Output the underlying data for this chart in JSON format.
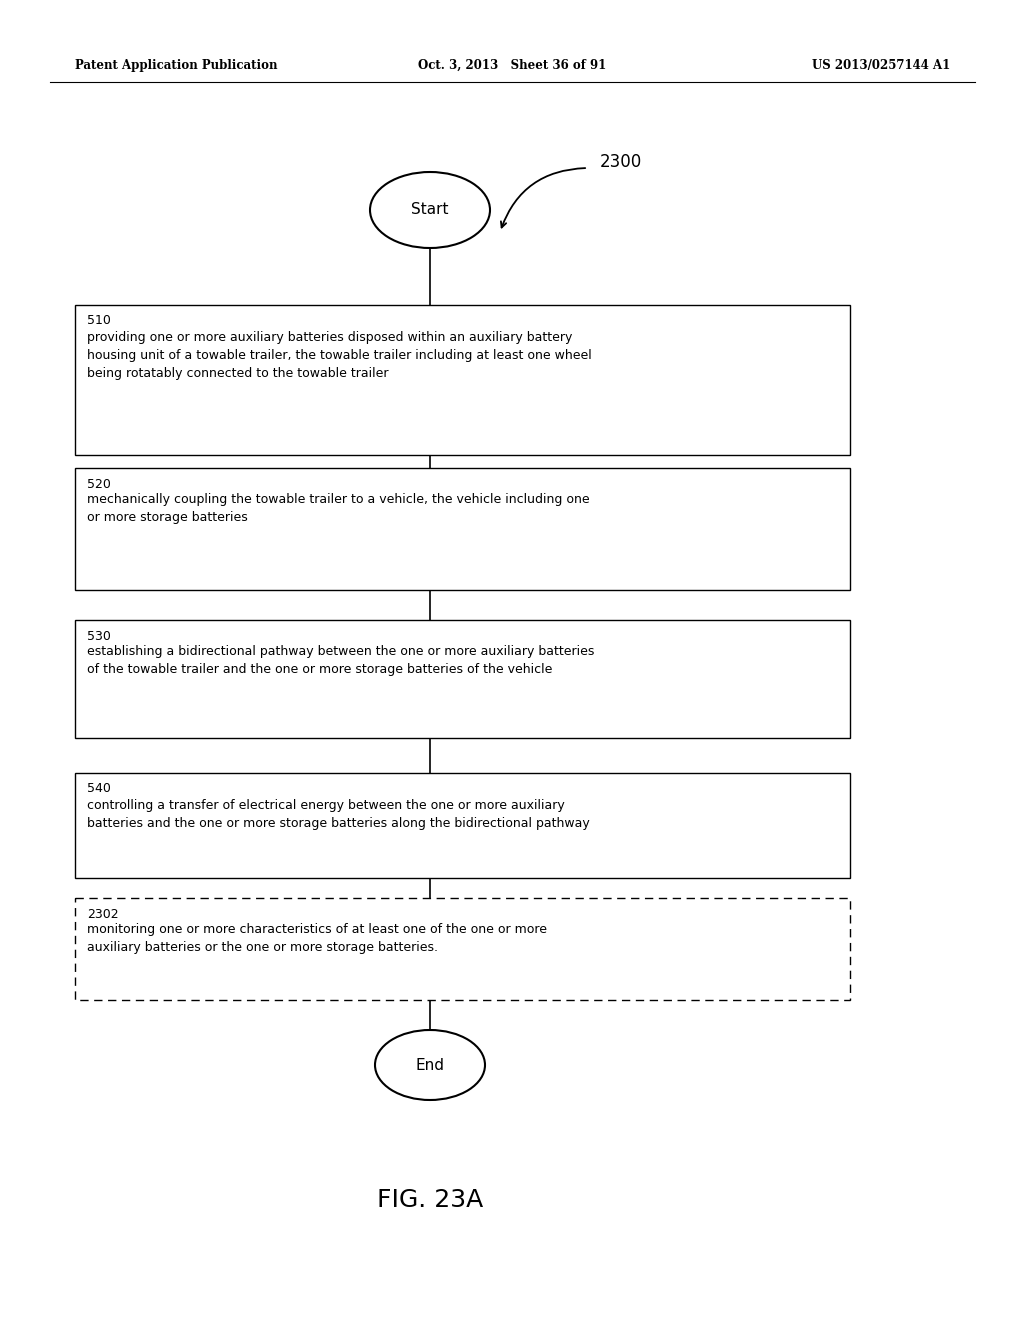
{
  "bg_color": "#ffffff",
  "header_left": "Patent Application Publication",
  "header_mid": "Oct. 3, 2013   Sheet 36 of 91",
  "header_right": "US 2013/0257144 A1",
  "figure_label": "FIG. 23A",
  "flowchart_label": "2300",
  "start_label": "Start",
  "end_label": "End",
  "boxes": [
    {
      "id": "510",
      "label": "510",
      "text": "providing one or more auxiliary batteries disposed within an auxiliary battery\nhousing unit of a towable trailer, the towable trailer including at least one wheel\nbeing rotatably connected to the towable trailer",
      "dashed": false
    },
    {
      "id": "520",
      "label": "520",
      "text": "mechanically coupling the towable trailer to a vehicle, the vehicle including one\nor more storage batteries",
      "dashed": false
    },
    {
      "id": "530",
      "label": "530",
      "text": "establishing a bidirectional pathway between the one or more auxiliary batteries\nof the towable trailer and the one or more storage batteries of the vehicle",
      "dashed": false
    },
    {
      "id": "540",
      "label": "540",
      "text": "controlling a transfer of electrical energy between the one or more auxiliary\nbatteries and the one or more storage batteries along the bidirectional pathway",
      "dashed": false
    },
    {
      "id": "2302",
      "label": "2302",
      "text": "monitoring one or more characteristics of at least one of the one or more\nauxiliary batteries or the one or more storage batteries.",
      "dashed": true
    }
  ],
  "text_size": 9.0,
  "label_size": 9.0,
  "header_size": 8.5,
  "fig_label_size": 18
}
